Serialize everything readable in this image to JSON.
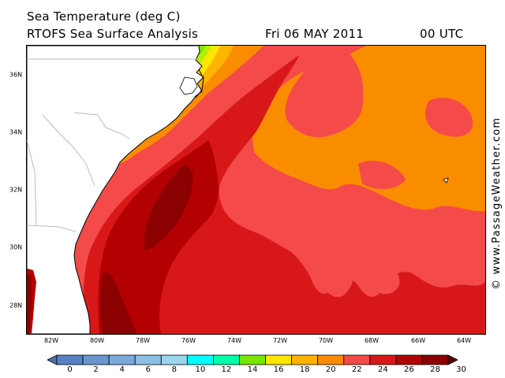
{
  "header": {
    "title": "Sea Temperature (deg C)",
    "subtitle": "RTOFS Sea Surface Analysis",
    "date": "Fri 06 MAY 2011",
    "time": "00 UTC"
  },
  "map": {
    "latitude_labels": [
      "36N",
      "34N",
      "32N",
      "30N",
      "28N"
    ],
    "longitude_labels": [
      "82W",
      "80W",
      "78W",
      "76W",
      "74W",
      "72W",
      "70W",
      "68W",
      "66W",
      "64W"
    ],
    "colors": {
      "land": "#ffffff",
      "coast": "#000000",
      "border": "#bbbbbb",
      "t30": "#8b0000",
      "t28": "#b30000",
      "t26": "#d81818",
      "t24": "#f44a4a",
      "t22": "#fa8c00",
      "t20": "#ffb400",
      "t18": "#ffe600",
      "t16": "#b4f000",
      "t14": "#78e600"
    }
  },
  "watermark": "© www.PassageWeather.com",
  "colorbar": {
    "labels": [
      "0",
      "2",
      "4",
      "6",
      "8",
      "10",
      "12",
      "14",
      "16",
      "18",
      "20",
      "22",
      "24",
      "26",
      "28",
      "30"
    ],
    "colors": [
      "#4a6fb0",
      "#5a82c2",
      "#6a96d0",
      "#7aaadc",
      "#8ac0e6",
      "#9ad6ee",
      "#00ffff",
      "#00ffaa",
      "#78e600",
      "#ffe600",
      "#ffb400",
      "#fa8c00",
      "#f44a4a",
      "#d81818",
      "#b30000",
      "#8b0000",
      "#5a0000"
    ]
  }
}
